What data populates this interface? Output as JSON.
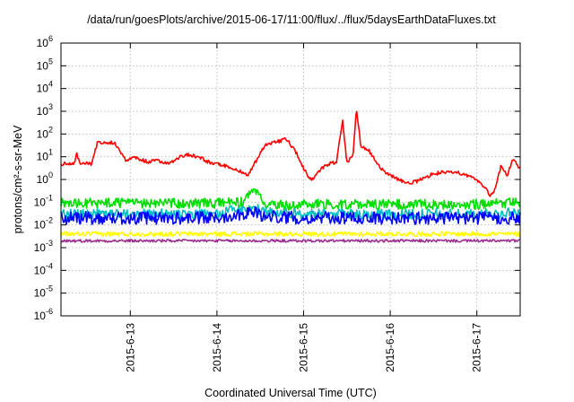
{
  "chart_data": {
    "type": "line",
    "title": "/data/run/goesPlots/archive/2015-06-17/11:00/flux/../flux/5daysEarthDataFluxes.txt",
    "xlabel": "Coordinated Universal Time (UTC)",
    "ylabel": "protons/cm²-s-sr-MeV",
    "y_scale": "log",
    "ylim": [
      1e-06,
      1000000.0
    ],
    "y_tick_exponents": [
      -6,
      -5,
      -4,
      -3,
      -2,
      -1,
      0,
      1,
      2,
      3,
      4,
      5,
      6
    ],
    "y_tick_base": "10",
    "xlim_days": [
      12.2,
      17.5
    ],
    "x_ticks": [
      {
        "day": 13,
        "label": "2015-6-13"
      },
      {
        "day": 14,
        "label": "2015-6-14"
      },
      {
        "day": 15,
        "label": "2015-6-15"
      },
      {
        "day": 16,
        "label": "2015-6-16"
      },
      {
        "day": 17,
        "label": "2015-6-17"
      }
    ],
    "grid": true,
    "legend": "none",
    "series": [
      {
        "color": "#ff0000",
        "noise": 0.08,
        "points": [
          [
            12.2,
            5
          ],
          [
            12.35,
            4.5
          ],
          [
            12.38,
            15
          ],
          [
            12.42,
            5
          ],
          [
            12.55,
            5
          ],
          [
            12.62,
            40
          ],
          [
            12.72,
            45
          ],
          [
            12.82,
            40
          ],
          [
            12.95,
            7
          ],
          [
            13.05,
            9
          ],
          [
            13.2,
            6
          ],
          [
            13.3,
            7
          ],
          [
            13.45,
            5
          ],
          [
            13.55,
            9
          ],
          [
            13.65,
            13
          ],
          [
            13.78,
            10
          ],
          [
            13.9,
            6
          ],
          [
            14.0,
            5
          ],
          [
            14.1,
            4
          ],
          [
            14.2,
            3
          ],
          [
            14.35,
            1.5
          ],
          [
            14.42,
            4
          ],
          [
            14.55,
            30
          ],
          [
            14.7,
            45
          ],
          [
            14.8,
            60
          ],
          [
            14.9,
            20
          ],
          [
            15.0,
            3
          ],
          [
            15.05,
            1.5
          ],
          [
            15.1,
            1.0
          ],
          [
            15.2,
            3
          ],
          [
            15.3,
            5
          ],
          [
            15.38,
            6
          ],
          [
            15.45,
            400
          ],
          [
            15.5,
            6
          ],
          [
            15.57,
            10
          ],
          [
            15.61,
            1400
          ],
          [
            15.66,
            30
          ],
          [
            15.75,
            20
          ],
          [
            15.82,
            8
          ],
          [
            15.9,
            3
          ],
          [
            15.95,
            2
          ],
          [
            16.0,
            1.5
          ],
          [
            16.1,
            1.0
          ],
          [
            16.2,
            0.7
          ],
          [
            16.3,
            0.8
          ],
          [
            16.4,
            1.2
          ],
          [
            16.5,
            1.8
          ],
          [
            16.6,
            2
          ],
          [
            16.7,
            2
          ],
          [
            16.8,
            2
          ],
          [
            16.9,
            1.4
          ],
          [
            17.0,
            1.0
          ],
          [
            17.1,
            0.4
          ],
          [
            17.15,
            0.2
          ],
          [
            17.2,
            0.3
          ],
          [
            17.28,
            4
          ],
          [
            17.35,
            1.5
          ],
          [
            17.42,
            8
          ],
          [
            17.5,
            3
          ]
        ]
      },
      {
        "color": "#00dd00",
        "noise": 0.22,
        "points": [
          [
            12.2,
            0.09
          ],
          [
            13.0,
            0.09
          ],
          [
            14.0,
            0.09
          ],
          [
            14.3,
            0.1
          ],
          [
            14.42,
            0.3
          ],
          [
            14.5,
            0.15
          ],
          [
            14.6,
            0.07
          ],
          [
            15.0,
            0.08
          ],
          [
            16.0,
            0.08
          ],
          [
            17.0,
            0.08
          ],
          [
            17.5,
            0.1
          ]
        ]
      },
      {
        "color": "#00c0c0",
        "noise": 0.22,
        "points": [
          [
            12.2,
            0.03
          ],
          [
            13.0,
            0.03
          ],
          [
            14.0,
            0.03
          ],
          [
            14.42,
            0.07
          ],
          [
            14.5,
            0.04
          ],
          [
            15.0,
            0.03
          ],
          [
            16.0,
            0.03
          ],
          [
            17.0,
            0.03
          ],
          [
            17.5,
            0.035
          ]
        ]
      },
      {
        "color": "#0000ff",
        "noise": 0.28,
        "points": [
          [
            12.2,
            0.02
          ],
          [
            13.0,
            0.02
          ],
          [
            14.0,
            0.02
          ],
          [
            14.42,
            0.04
          ],
          [
            14.5,
            0.025
          ],
          [
            15.0,
            0.02
          ],
          [
            16.0,
            0.02
          ],
          [
            17.0,
            0.02
          ],
          [
            17.5,
            0.02
          ]
        ]
      },
      {
        "color": "#ffff00",
        "noise": 0.1,
        "points": [
          [
            12.2,
            0.004
          ],
          [
            13.0,
            0.004
          ],
          [
            14.0,
            0.004
          ],
          [
            15.0,
            0.004
          ],
          [
            16.0,
            0.004
          ],
          [
            17.0,
            0.004
          ],
          [
            17.5,
            0.004
          ]
        ]
      },
      {
        "color": "#9b3090",
        "noise": 0.06,
        "points": [
          [
            12.2,
            0.002
          ],
          [
            13.0,
            0.002
          ],
          [
            14.0,
            0.002
          ],
          [
            15.0,
            0.002
          ],
          [
            16.0,
            0.002
          ],
          [
            17.0,
            0.002
          ],
          [
            17.5,
            0.002
          ]
        ]
      }
    ]
  }
}
